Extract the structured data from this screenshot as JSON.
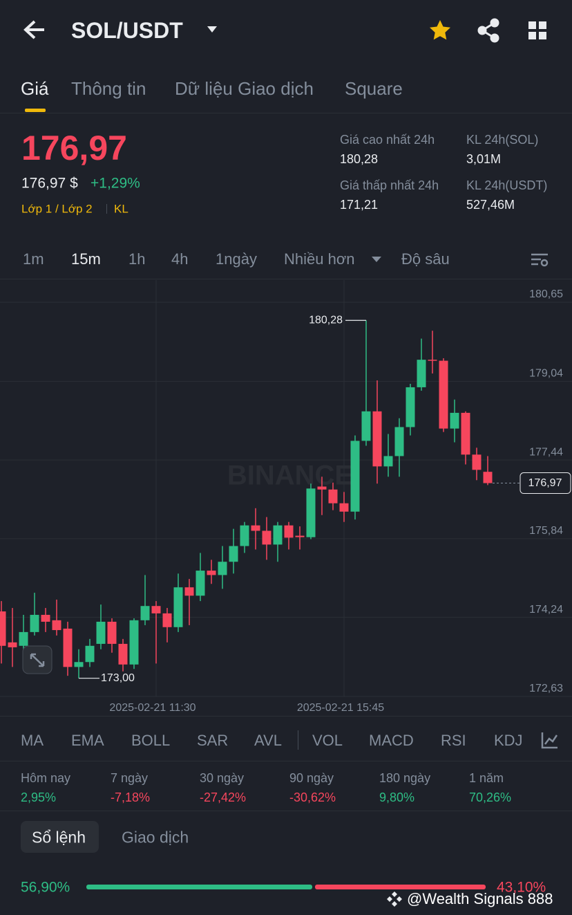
{
  "header": {
    "pair": "SOL/USDT"
  },
  "tabs": [
    "Giá",
    "Thông tin",
    "Dữ liệu Giao dịch",
    "Square"
  ],
  "price": {
    "last": "176,97",
    "usd": "176,97 $",
    "change": "+1,29%",
    "tags": [
      "Lớp 1 / Lớp 2",
      "KL"
    ]
  },
  "stats": [
    {
      "label": "Giá cao nhất 24h",
      "value": "180,28"
    },
    {
      "label": "KL 24h(SOL)",
      "value": "3,01M"
    },
    {
      "label": "Giá thấp nhất 24h",
      "value": "171,21"
    },
    {
      "label": "KL 24h(USDT)",
      "value": "527,46M"
    }
  ],
  "intervals": [
    "1m",
    "15m",
    "1h",
    "4h",
    "1ngày",
    "Nhiều hơn",
    "Độ sâu"
  ],
  "chart_data": {
    "type": "candlestick",
    "watermark": "BINANCE",
    "up_color": "#2ebd85",
    "down_color": "#f6465d",
    "categories": [
      null,
      null,
      null,
      null,
      null,
      null,
      null,
      null,
      null,
      null,
      null,
      null,
      null,
      null,
      "2025-02-21 11:30",
      null,
      null,
      null,
      null,
      null,
      null,
      null,
      null,
      null,
      null,
      null,
      null,
      null,
      null,
      null,
      null,
      "2025-02-21 15:45",
      null,
      null,
      null,
      null,
      null,
      null,
      null,
      null,
      null,
      null,
      null,
      null,
      null
    ],
    "open": [
      174.36,
      173.73,
      173.66,
      173.94,
      174.29,
      174.18,
      174.01,
      173.23,
      173.33,
      173.7,
      174.15,
      173.7,
      173.28,
      174.18,
      174.47,
      174.32,
      174.04,
      174.85,
      174.68,
      175.19,
      175.1,
      175.37,
      175.69,
      176.11,
      176.0,
      175.72,
      176.11,
      175.9,
      175.87,
      176.9,
      176.84,
      176.56,
      176.39,
      177.83,
      178.43,
      177.31,
      177.52,
      178.11,
      178.92,
      179.48,
      179.46,
      178.08,
      178.4,
      177.55,
      177.2
    ],
    "high": [
      174.57,
      174.43,
      174.29,
      174.74,
      174.43,
      174.6,
      174.15,
      173.59,
      173.8,
      174.5,
      174.22,
      173.8,
      174.22,
      175.1,
      174.57,
      174.43,
      175.13,
      175.02,
      175.55,
      175.41,
      175.69,
      176.04,
      176.18,
      176.46,
      176.28,
      176.18,
      176.18,
      176.09,
      176.96,
      177.1,
      176.98,
      176.79,
      177.94,
      180.28,
      179.06,
      177.97,
      178.29,
      178.99,
      179.91,
      180.07,
      179.51,
      178.67,
      178.43,
      177.69,
      177.52
    ],
    "low": [
      173.3,
      173.23,
      173.52,
      173.87,
      173.94,
      173.87,
      173.05,
      173.0,
      173.23,
      173.59,
      173.52,
      173.14,
      173.19,
      174.08,
      173.3,
      173.73,
      173.94,
      174.08,
      174.57,
      174.92,
      174.82,
      175.13,
      175.55,
      175.62,
      175.41,
      175.37,
      175.62,
      175.62,
      175.83,
      176.32,
      176.42,
      176.18,
      176.23,
      177.73,
      176.96,
      177.1,
      177.1,
      177.94,
      178.85,
      179.2,
      178.01,
      177.8,
      177.35,
      177.03,
      176.93
    ],
    "close": [
      173.66,
      173.63,
      173.94,
      174.29,
      174.15,
      173.98,
      173.23,
      173.33,
      173.66,
      174.15,
      173.7,
      173.28,
      174.18,
      174.47,
      174.32,
      174.04,
      174.85,
      174.68,
      175.19,
      175.1,
      175.37,
      175.69,
      176.11,
      176.0,
      175.72,
      176.11,
      175.86,
      175.87,
      176.86,
      176.84,
      176.56,
      176.39,
      177.83,
      178.43,
      177.31,
      177.52,
      178.11,
      178.92,
      179.48,
      179.46,
      178.08,
      178.4,
      177.55,
      177.24,
      176.97
    ],
    "ylim": [
      172.63,
      181.1
    ],
    "yticks": [
      {
        "value": 172.63,
        "label": "172,63"
      },
      {
        "value": 174.24,
        "label": "174,24"
      },
      {
        "value": 175.84,
        "label": "175,84"
      },
      {
        "value": 177.44,
        "label": "177,44"
      },
      {
        "value": 179.04,
        "label": "179,04"
      },
      {
        "value": 180.65,
        "label": "180,65"
      }
    ],
    "grid": true,
    "last_price": {
      "value": 176.97,
      "label": "176,97"
    },
    "annotations": [
      {
        "value": 180.28,
        "label": "180,28"
      },
      {
        "value": 173.0,
        "label": "173,00"
      }
    ]
  },
  "indicators": [
    "MA",
    "EMA",
    "BOLL",
    "SAR",
    "AVL",
    "VOL",
    "MACD",
    "RSI",
    "KDJ"
  ],
  "performance": [
    {
      "label": "Hôm nay",
      "value": "2,95%"
    },
    {
      "label": "7 ngày",
      "value": "-7,18%"
    },
    {
      "label": "30 ngày",
      "value": "-27,42%"
    },
    {
      "label": "90 ngày",
      "value": "-30,62%"
    },
    {
      "label": "180 ngày",
      "value": "9,80%"
    },
    {
      "label": "1 năm",
      "value": "70,26%"
    }
  ],
  "orderbook": {
    "tabs": [
      "Sổ lệnh",
      "Giao dịch"
    ],
    "buy": "56,90%",
    "sell": "43,10%"
  },
  "watermark": "@Wealth Signals 888"
}
